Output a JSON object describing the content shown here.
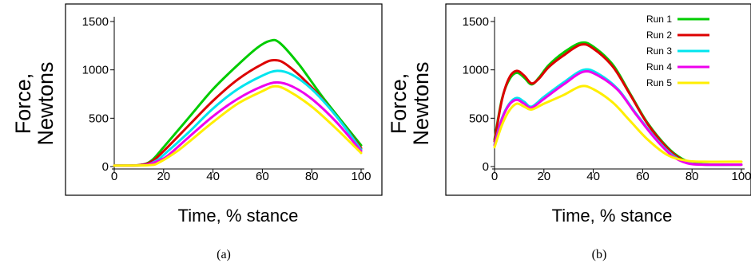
{
  "chart_data": [
    {
      "type": "line",
      "caption": "(a)",
      "xlabel": "Time, % stance",
      "ylabel_lines": [
        "Force,",
        "Newtons"
      ],
      "xlim": [
        0,
        100
      ],
      "ylim": [
        0,
        1500
      ],
      "xticks": [
        "0",
        "20",
        "40",
        "60",
        "80",
        "100"
      ],
      "yticks": [
        "0",
        "500",
        "1000",
        "1500"
      ],
      "grid": false,
      "legend": null,
      "series": [
        {
          "name": "Run 1",
          "color": "#00cc00",
          "points": [
            [
              0,
              10
            ],
            [
              10,
              15
            ],
            [
              15,
              60
            ],
            [
              20,
              200
            ],
            [
              30,
              500
            ],
            [
              40,
              800
            ],
            [
              50,
              1050
            ],
            [
              58,
              1230
            ],
            [
              63,
              1300
            ],
            [
              67,
              1280
            ],
            [
              75,
              1050
            ],
            [
              85,
              700
            ],
            [
              100,
              220
            ]
          ]
        },
        {
          "name": "Run 2",
          "color": "#dd0000",
          "points": [
            [
              0,
              10
            ],
            [
              10,
              15
            ],
            [
              15,
              50
            ],
            [
              20,
              160
            ],
            [
              30,
              420
            ],
            [
              40,
              680
            ],
            [
              50,
              900
            ],
            [
              60,
              1060
            ],
            [
              65,
              1100
            ],
            [
              70,
              1050
            ],
            [
              80,
              820
            ],
            [
              90,
              520
            ],
            [
              100,
              190
            ]
          ]
        },
        {
          "name": "Run 3",
          "color": "#00e5ee",
          "points": [
            [
              0,
              10
            ],
            [
              12,
              15
            ],
            [
              17,
              60
            ],
            [
              20,
              120
            ],
            [
              30,
              350
            ],
            [
              40,
              600
            ],
            [
              50,
              800
            ],
            [
              60,
              940
            ],
            [
              66,
              990
            ],
            [
              72,
              950
            ],
            [
              80,
              800
            ],
            [
              90,
              520
            ],
            [
              100,
              175
            ]
          ]
        },
        {
          "name": "Run 4",
          "color": "#ee00ee",
          "points": [
            [
              0,
              10
            ],
            [
              12,
              15
            ],
            [
              18,
              60
            ],
            [
              22,
              120
            ],
            [
              30,
              300
            ],
            [
              40,
              520
            ],
            [
              50,
              700
            ],
            [
              60,
              830
            ],
            [
              66,
              870
            ],
            [
              72,
              830
            ],
            [
              80,
              700
            ],
            [
              90,
              460
            ],
            [
              100,
              160
            ]
          ]
        },
        {
          "name": "Run 5",
          "color": "#ffee00",
          "points": [
            [
              0,
              10
            ],
            [
              14,
              15
            ],
            [
              18,
              40
            ],
            [
              25,
              150
            ],
            [
              30,
              250
            ],
            [
              40,
              460
            ],
            [
              50,
              650
            ],
            [
              60,
              780
            ],
            [
              65,
              830
            ],
            [
              70,
              790
            ],
            [
              80,
              620
            ],
            [
              90,
              390
            ],
            [
              100,
              140
            ]
          ]
        }
      ]
    },
    {
      "type": "line",
      "caption": "(b)",
      "xlabel": "Time, % stance",
      "ylabel_lines": [
        "Force,",
        "Newtons"
      ],
      "xlim": [
        0,
        100
      ],
      "ylim": [
        0,
        1500
      ],
      "xticks": [
        "0",
        "20",
        "40",
        "60",
        "80",
        "100"
      ],
      "yticks": [
        "0",
        "500",
        "1000",
        "1500"
      ],
      "grid": false,
      "legend": "top-right",
      "series": [
        {
          "name": "Run 1",
          "color": "#00cc00",
          "points": [
            [
              0,
              280
            ],
            [
              3,
              700
            ],
            [
              6,
              900
            ],
            [
              9,
              970
            ],
            [
              12,
              920
            ],
            [
              15,
              850
            ],
            [
              18,
              920
            ],
            [
              22,
              1050
            ],
            [
              28,
              1180
            ],
            [
              35,
              1280
            ],
            [
              40,
              1240
            ],
            [
              48,
              1050
            ],
            [
              55,
              750
            ],
            [
              62,
              450
            ],
            [
              70,
              200
            ],
            [
              76,
              80
            ],
            [
              82,
              30
            ],
            [
              90,
              20
            ],
            [
              100,
              20
            ]
          ]
        },
        {
          "name": "Run 2",
          "color": "#dd0000",
          "points": [
            [
              0,
              260
            ],
            [
              3,
              690
            ],
            [
              6,
              920
            ],
            [
              9,
              990
            ],
            [
              12,
              940
            ],
            [
              15,
              860
            ],
            [
              18,
              910
            ],
            [
              22,
              1030
            ],
            [
              28,
              1150
            ],
            [
              35,
              1260
            ],
            [
              40,
              1220
            ],
            [
              48,
              1030
            ],
            [
              55,
              740
            ],
            [
              62,
              440
            ],
            [
              70,
              190
            ],
            [
              76,
              70
            ],
            [
              82,
              25
            ],
            [
              90,
              20
            ],
            [
              100,
              20
            ]
          ]
        },
        {
          "name": "Run 3",
          "color": "#00e5ee",
          "points": [
            [
              0,
              230
            ],
            [
              3,
              500
            ],
            [
              6,
              650
            ],
            [
              9,
              710
            ],
            [
              12,
              670
            ],
            [
              15,
              620
            ],
            [
              20,
              720
            ],
            [
              28,
              870
            ],
            [
              36,
              1000
            ],
            [
              42,
              960
            ],
            [
              50,
              800
            ],
            [
              57,
              560
            ],
            [
              65,
              300
            ],
            [
              72,
              120
            ],
            [
              78,
              40
            ],
            [
              85,
              20
            ],
            [
              100,
              20
            ]
          ]
        },
        {
          "name": "Run 4",
          "color": "#ee00ee",
          "points": [
            [
              0,
              220
            ],
            [
              3,
              490
            ],
            [
              6,
              640
            ],
            [
              9,
              690
            ],
            [
              12,
              650
            ],
            [
              15,
              610
            ],
            [
              20,
              700
            ],
            [
              28,
              850
            ],
            [
              36,
              980
            ],
            [
              42,
              940
            ],
            [
              50,
              790
            ],
            [
              57,
              550
            ],
            [
              65,
              290
            ],
            [
              72,
              110
            ],
            [
              78,
              35
            ],
            [
              85,
              20
            ],
            [
              100,
              20
            ]
          ]
        },
        {
          "name": "Run 5",
          "color": "#ffee00",
          "points": [
            [
              0,
              200
            ],
            [
              3,
              430
            ],
            [
              6,
              580
            ],
            [
              9,
              650
            ],
            [
              12,
              620
            ],
            [
              15,
              590
            ],
            [
              20,
              650
            ],
            [
              28,
              740
            ],
            [
              35,
              830
            ],
            [
              40,
              800
            ],
            [
              48,
              660
            ],
            [
              55,
              470
            ],
            [
              62,
              280
            ],
            [
              70,
              120
            ],
            [
              78,
              60
            ],
            [
              85,
              50
            ],
            [
              100,
              50
            ]
          ]
        }
      ]
    }
  ]
}
